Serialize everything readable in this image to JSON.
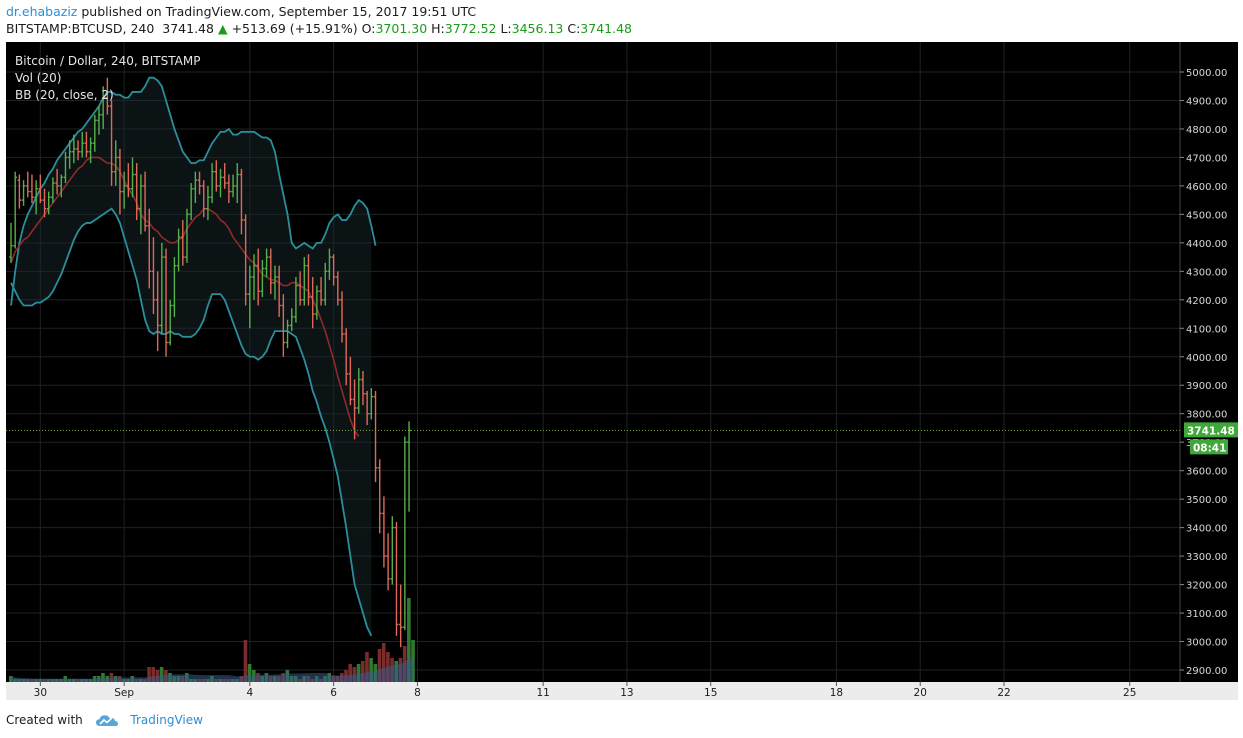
{
  "header": {
    "author": "dr.ehabaziz",
    "published_text": "published on TradingView.com, September 15, 2017 19:51 UTC",
    "symbol": "BITSTAMP:BTCUSD, 240",
    "last": "3741.48",
    "up_arrow": "▲",
    "change": "+513.69 (+15.91%)",
    "o_label": "O:",
    "o_value": "3701.30",
    "h_label": "H:",
    "h_value": "3772.52",
    "l_label": "L:",
    "l_value": "3456.13",
    "c_label": "C:",
    "c_value": "3741.48"
  },
  "legend": {
    "line1": "Bitcoin / Dollar, 240, BITSTAMP",
    "line2": "Vol (20)",
    "line3": "BB (20, close, 2)"
  },
  "footer": {
    "created_with": "Created with",
    "brand": "TradingView"
  },
  "colors": {
    "background": "#000000",
    "grid": "#1e2226",
    "up": "#56b04a",
    "down": "#e0685a",
    "bb_band": "#2b8e9b",
    "bb_basis": "#8e2a2a",
    "last_price": "#40a83a",
    "axis_text": "#d8d8d8"
  },
  "chart_data": {
    "type": "ohlc",
    "title": "Bitcoin / Dollar, 240, BITSTAMP",
    "ylim": [
      2850,
      5050
    ],
    "y_ticks": [
      "2900.00",
      "3000.00",
      "3100.00",
      "3200.00",
      "3300.00",
      "3400.00",
      "3500.00",
      "3600.00",
      "3700.00",
      "3800.00",
      "3900.00",
      "4000.00",
      "4100.00",
      "4200.00",
      "4300.00",
      "4400.00",
      "4500.00",
      "4600.00",
      "4700.00",
      "4800.00",
      "4900.00",
      "5000.00"
    ],
    "x_ticks": [
      {
        "label": "30",
        "bar": 7
      },
      {
        "label": "Sep",
        "bar": 27
      },
      {
        "label": "4",
        "bar": 57
      },
      {
        "label": "6",
        "bar": 77
      },
      {
        "label": "8",
        "bar": 97
      },
      {
        "label": "11",
        "bar": 127
      },
      {
        "label": "13",
        "bar": 147
      },
      {
        "label": "15",
        "bar": 167
      },
      {
        "label": "18",
        "bar": 197
      },
      {
        "label": "20",
        "bar": 217
      },
      {
        "label": "22",
        "bar": 237
      },
      {
        "label": "25",
        "bar": 267
      }
    ],
    "last_price": 3741.48,
    "last_price_label": "3741.48",
    "countdown_label": "08:41",
    "candles": [
      [
        4350,
        4470,
        4330,
        4390
      ],
      [
        4390,
        4650,
        4380,
        4630
      ],
      [
        4620,
        4640,
        4520,
        4550
      ],
      [
        4550,
        4620,
        4530,
        4600
      ],
      [
        4600,
        4650,
        4560,
        4580
      ],
      [
        4580,
        4640,
        4540,
        4560
      ],
      [
        4560,
        4620,
        4500,
        4590
      ],
      [
        4590,
        4640,
        4540,
        4550
      ],
      [
        4550,
        4590,
        4490,
        4520
      ],
      [
        4520,
        4580,
        4500,
        4560
      ],
      [
        4560,
        4630,
        4540,
        4610
      ],
      [
        4610,
        4660,
        4570,
        4600
      ],
      [
        4600,
        4640,
        4560,
        4630
      ],
      [
        4630,
        4720,
        4610,
        4700
      ],
      [
        4700,
        4760,
        4660,
        4720
      ],
      [
        4720,
        4780,
        4680,
        4730
      ],
      [
        4730,
        4760,
        4690,
        4720
      ],
      [
        4720,
        4790,
        4700,
        4750
      ],
      [
        4750,
        4790,
        4700,
        4720
      ],
      [
        4720,
        4770,
        4680,
        4750
      ],
      [
        4750,
        4850,
        4720,
        4830
      ],
      [
        4830,
        4880,
        4780,
        4850
      ],
      [
        4850,
        4950,
        4800,
        4910
      ],
      [
        4910,
        4980,
        4850,
        4880
      ],
      [
        4880,
        4900,
        4600,
        4650
      ],
      [
        4650,
        4760,
        4600,
        4700
      ],
      [
        4700,
        4730,
        4500,
        4580
      ],
      [
        4580,
        4650,
        4520,
        4600
      ],
      [
        4600,
        4680,
        4560,
        4590
      ],
      [
        4590,
        4700,
        4560,
        4640
      ],
      [
        4640,
        4680,
        4480,
        4520
      ],
      [
        4520,
        4640,
        4430,
        4600
      ],
      [
        4600,
        4650,
        4440,
        4460
      ],
      [
        4460,
        4520,
        4240,
        4300
      ],
      [
        4300,
        4420,
        4150,
        4200
      ],
      [
        4200,
        4300,
        4020,
        4110
      ],
      [
        4110,
        4400,
        4080,
        4350
      ],
      [
        4350,
        4380,
        4000,
        4050
      ],
      [
        4050,
        4200,
        4040,
        4180
      ],
      [
        4180,
        4350,
        4140,
        4320
      ],
      [
        4320,
        4450,
        4300,
        4420
      ],
      [
        4420,
        4480,
        4320,
        4350
      ],
      [
        4350,
        4520,
        4330,
        4500
      ],
      [
        4500,
        4610,
        4480,
        4590
      ],
      [
        4590,
        4650,
        4540,
        4620
      ],
      [
        4620,
        4650,
        4570,
        4600
      ],
      [
        4600,
        4620,
        4490,
        4520
      ],
      [
        4520,
        4600,
        4480,
        4560
      ],
      [
        4560,
        4680,
        4540,
        4650
      ],
      [
        4650,
        4690,
        4580,
        4600
      ],
      [
        4600,
        4660,
        4560,
        4630
      ],
      [
        4630,
        4680,
        4590,
        4610
      ],
      [
        4610,
        4640,
        4540,
        4580
      ],
      [
        4580,
        4640,
        4560,
        4600
      ],
      [
        4600,
        4680,
        4540,
        4640
      ],
      [
        4640,
        4660,
        4430,
        4480
      ],
      [
        4480,
        4500,
        4180,
        4220
      ],
      [
        4220,
        4320,
        4100,
        4280
      ],
      [
        4280,
        4360,
        4200,
        4320
      ],
      [
        4320,
        4380,
        4180,
        4230
      ],
      [
        4230,
        4340,
        4210,
        4310
      ],
      [
        4310,
        4380,
        4280,
        4350
      ],
      [
        4350,
        4380,
        4220,
        4260
      ],
      [
        4260,
        4320,
        4200,
        4280
      ],
      [
        4280,
        4320,
        4140,
        4180
      ],
      [
        4180,
        4220,
        4000,
        4050
      ],
      [
        4050,
        4130,
        4030,
        4110
      ],
      [
        4110,
        4170,
        4090,
        4140
      ],
      [
        4140,
        4280,
        4120,
        4250
      ],
      [
        4250,
        4300,
        4180,
        4200
      ],
      [
        4200,
        4350,
        4180,
        4320
      ],
      [
        4320,
        4360,
        4180,
        4210
      ],
      [
        4210,
        4280,
        4100,
        4150
      ],
      [
        4150,
        4250,
        4130,
        4230
      ],
      [
        4230,
        4280,
        4180,
        4200
      ],
      [
        4200,
        4330,
        4180,
        4300
      ],
      [
        4300,
        4380,
        4270,
        4350
      ],
      [
        4350,
        4360,
        4250,
        4280
      ],
      [
        4280,
        4300,
        4180,
        4200
      ],
      [
        4200,
        4230,
        4050,
        4080
      ],
      [
        4080,
        4100,
        3900,
        3940
      ],
      [
        3940,
        4000,
        3830,
        3850
      ],
      [
        3850,
        3920,
        3710,
        3820
      ],
      [
        3820,
        3960,
        3800,
        3920
      ],
      [
        3920,
        3950,
        3830,
        3870
      ],
      [
        3870,
        3880,
        3760,
        3800
      ],
      [
        3800,
        3890,
        3780,
        3860
      ],
      [
        3860,
        3880,
        3560,
        3610
      ],
      [
        3610,
        3640,
        3380,
        3450
      ],
      [
        3450,
        3510,
        3260,
        3300
      ],
      [
        3300,
        3380,
        3180,
        3220
      ],
      [
        3220,
        3440,
        3200,
        3400
      ],
      [
        3400,
        3420,
        3020,
        3060
      ],
      [
        3060,
        3200,
        2980,
        3050
      ],
      [
        3050,
        3720,
        3040,
        3700
      ],
      [
        3700,
        3773,
        3456,
        3741
      ]
    ],
    "bb_upper": [
      4180,
      4300,
      4400,
      4460,
      4500,
      4530,
      4560,
      4590,
      4610,
      4640,
      4660,
      4690,
      4710,
      4730,
      4750,
      4770,
      4790,
      4800,
      4820,
      4840,
      4860,
      4880,
      4910,
      4930,
      4930,
      4920,
      4920,
      4910,
      4910,
      4930,
      4930,
      4930,
      4950,
      4980,
      4980,
      4970,
      4950,
      4900,
      4850,
      4800,
      4760,
      4720,
      4700,
      4680,
      4680,
      4690,
      4690,
      4720,
      4750,
      4770,
      4790,
      4790,
      4800,
      4780,
      4780,
      4790,
      4790,
      4790,
      4790,
      4780,
      4770,
      4770,
      4760,
      4720,
      4640,
      4570,
      4500,
      4400,
      4380,
      4390,
      4400,
      4390,
      4380,
      4400,
      4400,
      4430,
      4470,
      4490,
      4500,
      4480,
      4480,
      4500,
      4530,
      4550,
      4540,
      4520,
      4460,
      4390
    ],
    "bb_basis": [
      4330,
      4370,
      4390,
      4410,
      4420,
      4440,
      4460,
      4480,
      4500,
      4520,
      4540,
      4560,
      4580,
      4600,
      4620,
      4640,
      4660,
      4670,
      4690,
      4700,
      4700,
      4700,
      4690,
      4680,
      4680,
      4670,
      4650,
      4620,
      4590,
      4570,
      4540,
      4500,
      4480,
      4470,
      4450,
      4440,
      4420,
      4410,
      4400,
      4400,
      4410,
      4420,
      4450,
      4470,
      4490,
      4500,
      4520,
      4520,
      4510,
      4500,
      4480,
      4470,
      4450,
      4420,
      4400,
      4380,
      4360,
      4340,
      4330,
      4310,
      4290,
      4280,
      4270,
      4270,
      4260,
      4250,
      4250,
      4260,
      4260,
      4250,
      4240,
      4230,
      4200,
      4170,
      4130,
      4090,
      4040,
      3990,
      3930,
      3880,
      3830,
      3780,
      3740,
      3720
    ],
    "bb_lower": [
      4260,
      4230,
      4200,
      4180,
      4180,
      4180,
      4190,
      4190,
      4200,
      4210,
      4230,
      4260,
      4290,
      4330,
      4370,
      4410,
      4440,
      4460,
      4470,
      4470,
      4480,
      4490,
      4500,
      4510,
      4520,
      4500,
      4470,
      4420,
      4370,
      4320,
      4270,
      4200,
      4130,
      4090,
      4080,
      4090,
      4080,
      4080,
      4090,
      4080,
      4080,
      4070,
      4070,
      4070,
      4080,
      4100,
      4130,
      4180,
      4220,
      4220,
      4220,
      4200,
      4160,
      4120,
      4080,
      4040,
      4010,
      4000,
      4000,
      3990,
      4000,
      4020,
      4060,
      4090,
      4090,
      4090,
      4090,
      4080,
      4070,
      4030,
      3990,
      3940,
      3880,
      3840,
      3790,
      3750,
      3700,
      3640,
      3580,
      3490,
      3400,
      3300,
      3200,
      3150,
      3100,
      3050,
      3020
    ],
    "volume": [
      [
        2,
        2
      ],
      [
        1,
        1
      ],
      [
        1,
        1
      ],
      [
        1,
        1
      ],
      [
        1,
        1
      ],
      [
        0,
        1
      ],
      [
        1,
        1
      ],
      [
        1,
        1
      ],
      [
        0,
        1
      ],
      [
        1,
        1
      ],
      [
        1,
        1
      ],
      [
        1,
        1
      ],
      [
        1,
        1
      ],
      [
        1,
        2
      ],
      [
        1,
        1
      ],
      [
        1,
        1
      ],
      [
        0,
        1
      ],
      [
        1,
        1
      ],
      [
        1,
        1
      ],
      [
        1,
        1
      ],
      [
        1,
        2
      ],
      [
        1,
        2
      ],
      [
        1,
        3
      ],
      [
        1,
        2
      ],
      [
        0,
        3
      ],
      [
        1,
        2
      ],
      [
        0,
        2
      ],
      [
        1,
        1
      ],
      [
        1,
        1
      ],
      [
        1,
        2
      ],
      [
        0,
        1
      ],
      [
        1,
        1
      ],
      [
        0,
        1
      ],
      [
        0,
        5
      ],
      [
        0,
        5
      ],
      [
        0,
        4
      ],
      [
        1,
        5
      ],
      [
        0,
        4
      ],
      [
        1,
        3
      ],
      [
        1,
        2
      ],
      [
        1,
        2
      ],
      [
        0,
        2
      ],
      [
        1,
        3
      ],
      [
        1,
        1
      ],
      [
        1,
        1
      ],
      [
        0,
        1
      ],
      [
        0,
        1
      ],
      [
        1,
        1
      ],
      [
        1,
        2
      ],
      [
        0,
        1
      ],
      [
        1,
        1
      ],
      [
        0,
        1
      ],
      [
        0,
        1
      ],
      [
        1,
        1
      ],
      [
        1,
        1
      ],
      [
        0,
        2
      ],
      [
        0,
        14
      ],
      [
        1,
        6
      ],
      [
        1,
        4
      ],
      [
        0,
        3
      ],
      [
        1,
        2
      ],
      [
        1,
        3
      ],
      [
        0,
        2
      ],
      [
        1,
        2
      ],
      [
        0,
        2
      ],
      [
        0,
        3
      ],
      [
        1,
        4
      ],
      [
        1,
        2
      ],
      [
        1,
        2
      ],
      [
        0,
        1
      ],
      [
        1,
        2
      ],
      [
        0,
        2
      ],
      [
        0,
        1
      ],
      [
        1,
        2
      ],
      [
        0,
        1
      ],
      [
        1,
        2
      ],
      [
        1,
        3
      ],
      [
        0,
        2
      ],
      [
        0,
        2
      ],
      [
        0,
        3
      ],
      [
        0,
        4
      ],
      [
        0,
        6
      ],
      [
        0,
        5
      ],
      [
        1,
        6
      ],
      [
        0,
        7
      ],
      [
        0,
        10
      ],
      [
        1,
        8
      ],
      [
        1,
        6
      ],
      [
        0,
        11
      ],
      [
        0,
        13
      ],
      [
        0,
        10
      ],
      [
        0,
        8
      ],
      [
        1,
        7
      ],
      [
        0,
        8
      ],
      [
        0,
        12
      ],
      [
        1,
        28
      ],
      [
        1,
        14
      ]
    ],
    "volume_ylim": [
      0,
      30
    ]
  }
}
